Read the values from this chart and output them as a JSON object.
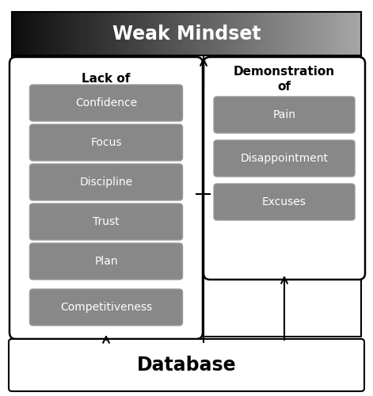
{
  "title": "Weak Mindset",
  "title_color": "white",
  "lack_of_label": "Lack of",
  "lack_of_items": [
    "Confidence",
    "Focus",
    "Discipline",
    "Trust",
    "Plan",
    "Competitiveness"
  ],
  "demo_label": "Demonstration\nof",
  "demo_items": [
    "Pain",
    "Disappointment",
    "Excuses"
  ],
  "database_label": "Database",
  "item_bg_color": "#888888",
  "item_text_color": "white",
  "box_border_color": "black",
  "arrow_color": "black",
  "background_color": "white",
  "fig_width": 4.71,
  "fig_height": 5.0,
  "dpi": 100
}
